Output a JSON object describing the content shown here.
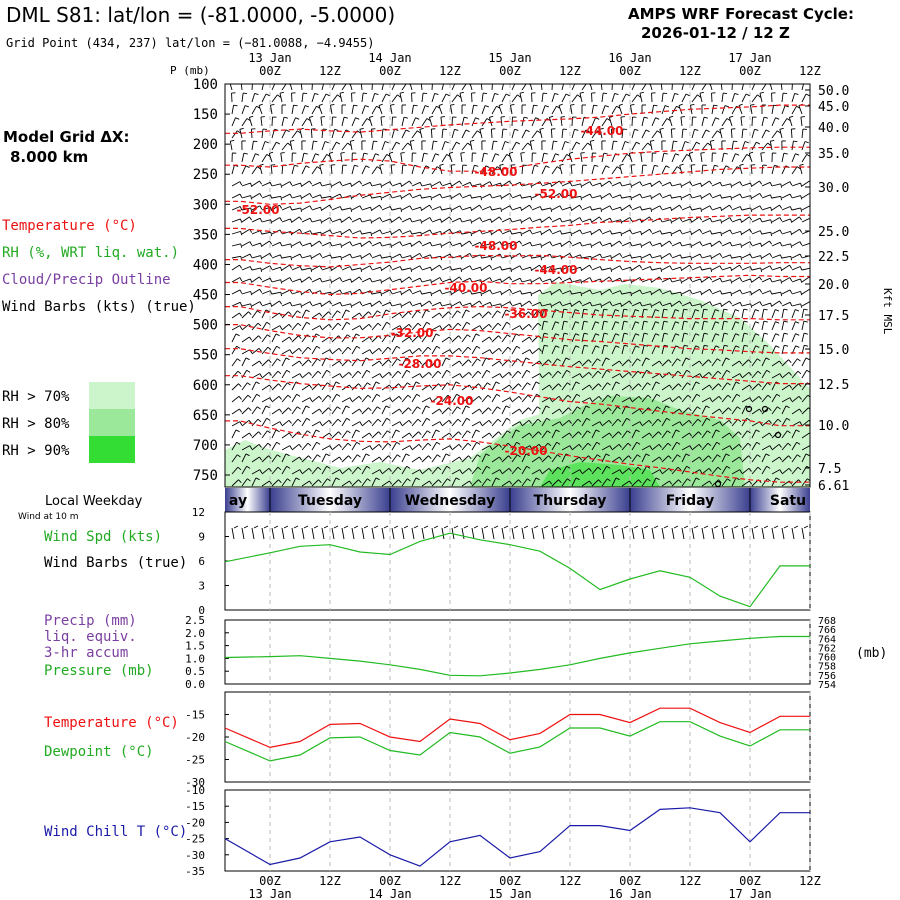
{
  "header": {
    "title": "DML S81:  lat/lon = (-81.0000, -5.0000)",
    "grid_point": "Grid Point (434, 237) lat/lon = (−81.0088, −4.9455)",
    "cycle_line1": "AMPS WRF Forecast Cycle:",
    "cycle_line2": "2026-01-12 / 12  Z",
    "model_grid_line1": "Model Grid ΔX:",
    "model_grid_line2": "8.000 km"
  },
  "time_axis": {
    "ticks": [
      "00Z",
      "12Z",
      "00Z",
      "12Z",
      "00Z",
      "12Z",
      "00Z",
      "12Z",
      "00Z",
      "12Z"
    ],
    "date_labels": [
      "13 Jan",
      "14 Jan",
      "15 Jan",
      "16 Jan",
      "17 Jan"
    ]
  },
  "weekday_bar": {
    "title": "Local Weekday",
    "wind_note": "Wind at 10 m",
    "days": [
      "Monday",
      "Tuesday",
      "Wednesday",
      "Thursday",
      "Friday",
      "Saturday"
    ],
    "visible_days": [
      "ay",
      "Tuesday",
      "Wednesday",
      "Thursday",
      "Friday",
      "Satu"
    ]
  },
  "legend": {
    "temperature": "Temperature (°C)",
    "rh": "RH (%, WRT liq. wat.)",
    "cloud": "Cloud/Precip Outline",
    "wind": "Wind Barbs (kts) (true)",
    "rh_levels": [
      "RH > 70%",
      "RH > 80%",
      "RH > 90%"
    ],
    "rh_colors": [
      "#ccf5cc",
      "#9be89b",
      "#33dd33"
    ]
  },
  "colors": {
    "temperature": "#ee1111",
    "green": "#22bb22",
    "blue": "#1a1aa8",
    "purple": "#7a3fa0"
  },
  "chart_data": [
    {
      "type": "line",
      "title": "Time-height cross section",
      "x": [
        0,
        6,
        12,
        18,
        24,
        30,
        36,
        42,
        48,
        54,
        60,
        66,
        72,
        78,
        84,
        90,
        96,
        102,
        108
      ],
      "x_unit": "forecast hour",
      "ylabel": "P (mb)",
      "y2label": "Kft MSL",
      "y_ticks": [
        100,
        150,
        200,
        250,
        300,
        350,
        400,
        450,
        500,
        550,
        600,
        650,
        700,
        750
      ],
      "y2_ticks": [
        "50.0",
        "45.0",
        "40.0",
        "35.0",
        "30.0",
        "25.0",
        "22.5",
        "20.0",
        "17.5",
        "15.0",
        "12.5",
        "10.0",
        "7.5",
        "6.61"
      ],
      "ylim": [
        100,
        775
      ],
      "isotherm_labels": [
        "-44.00",
        "-48.00",
        "-52.00",
        "-52.00",
        "-48.00",
        "-44.00",
        "-40.00",
        "-36.00",
        "-32.00",
        "-28.00",
        "-24.00",
        "-20.00"
      ],
      "series": [
        {
          "name": "-44",
          "values": [
            182,
            178,
            175,
            178,
            180,
            176,
            172,
            168,
            165,
            162,
            160,
            158,
            155,
            150,
            146,
            142,
            140,
            138,
            135
          ]
        },
        {
          "name": "-48",
          "values": [
            235,
            238,
            232,
            228,
            225,
            228,
            238,
            245,
            245,
            240,
            232,
            225,
            220,
            215,
            212,
            210,
            208,
            206,
            205
          ]
        },
        {
          "name": "-52",
          "values": [
            295,
            300,
            298,
            292,
            285,
            280,
            275,
            272,
            270,
            268,
            265,
            262,
            258,
            254,
            250,
            246,
            242,
            240,
            238
          ]
        },
        {
          "name": "-48b",
          "values": [
            340,
            345,
            348,
            352,
            356,
            355,
            352,
            348,
            345,
            342,
            338,
            335,
            330,
            328,
            325,
            322,
            320,
            318,
            318
          ]
        },
        {
          "name": "-44b",
          "values": [
            392,
            398,
            402,
            404,
            400,
            396,
            390,
            388,
            385,
            386,
            385,
            388,
            392,
            395,
            397,
            398,
            398,
            398,
            397
          ]
        },
        {
          "name": "-40",
          "values": [
            430,
            438,
            445,
            450,
            448,
            442,
            436,
            430,
            428,
            432,
            432,
            430,
            428,
            426,
            424,
            422,
            420,
            418,
            420
          ]
        },
        {
          "name": "-36",
          "values": [
            470,
            480,
            488,
            492,
            490,
            482,
            476,
            472,
            470,
            472,
            476,
            480,
            484,
            486,
            488,
            490,
            490,
            490,
            492
          ]
        },
        {
          "name": "-32",
          "values": [
            500,
            510,
            518,
            522,
            522,
            518,
            512,
            508,
            510,
            515,
            520,
            525,
            528,
            532,
            536,
            540,
            542,
            545,
            547
          ]
        },
        {
          "name": "-28",
          "values": [
            540,
            548,
            555,
            558,
            560,
            556,
            552,
            552,
            555,
            560,
            565,
            570,
            574,
            578,
            582,
            586,
            590,
            594,
            598
          ]
        },
        {
          "name": "-24",
          "values": [
            585,
            592,
            598,
            602,
            606,
            605,
            602,
            600,
            605,
            612,
            620,
            628,
            632,
            638,
            644,
            650,
            655,
            660,
            668
          ]
        },
        {
          "name": "-20",
          "values": [
            660,
            672,
            682,
            690,
            694,
            695,
            692,
            690,
            695,
            702,
            710,
            718,
            725,
            732,
            738,
            745,
            752,
            758,
            762
          ]
        }
      ]
    },
    {
      "type": "line",
      "title": "Wind Spd (kts)",
      "labels": [
        "Wind Spd (kts)",
        "Wind Barbs (true)"
      ],
      "y_ticks": [
        0,
        3,
        6,
        9,
        12
      ],
      "ylim": [
        0,
        12
      ],
      "x": [
        0,
        6,
        12,
        18,
        24,
        30,
        36,
        42,
        48,
        54,
        60,
        66,
        72,
        78,
        84,
        90,
        96,
        102,
        108
      ],
      "series": [
        {
          "name": "Wind Spd",
          "color": "green",
          "values": [
            5.9,
            7.0,
            7.8,
            8.0,
            7.1,
            6.8,
            8.4,
            9.4,
            8.6,
            8.0,
            7.2,
            5.1,
            2.5,
            3.8,
            4.8,
            4.0,
            1.7,
            0.4,
            5.4
          ]
        }
      ]
    },
    {
      "type": "line",
      "title": "Precip / Pressure",
      "labels": [
        "Precip (mm)",
        "liq. equiv.",
        "3-hr accum",
        "Pressure (mb)"
      ],
      "y_ticks": [
        0.0,
        0.5,
        1.0,
        1.5,
        2.0,
        2.5
      ],
      "ylim": [
        0.0,
        2.5
      ],
      "y2_ticks": [
        754,
        756,
        758,
        760,
        762,
        764,
        766,
        768
      ],
      "y2_label": "(mb)",
      "x": [
        0,
        6,
        12,
        18,
        24,
        30,
        36,
        42,
        48,
        54,
        60,
        66,
        72,
        78,
        84,
        90,
        96,
        102,
        108
      ],
      "series": [
        {
          "name": "Pressure",
          "color": "green",
          "values": [
            759.8,
            760.0,
            760.2,
            759.6,
            759.0,
            758.2,
            757.2,
            755.9,
            755.8,
            756.4,
            757.2,
            758.2,
            759.6,
            760.8,
            761.8,
            762.8,
            763.4,
            764.0,
            764.4
          ]
        }
      ]
    },
    {
      "type": "line",
      "title": "Temperature / Dewpoint",
      "labels": [
        "Temperature (°C)",
        "Dewpoint (°C)"
      ],
      "y_ticks": [
        -15,
        -20,
        -25,
        -30
      ],
      "ylim": [
        -30,
        -10
      ],
      "x": [
        0,
        6,
        12,
        18,
        24,
        30,
        36,
        42,
        48,
        54,
        60,
        66,
        72,
        78,
        84,
        90,
        96,
        102,
        108
      ],
      "series": [
        {
          "name": "Temperature",
          "color": "temperature",
          "values": [
            -18.0,
            -22.3,
            -21.0,
            -17.2,
            -17.0,
            -20.0,
            -21.0,
            -16.0,
            -17.0,
            -20.6,
            -19.2,
            -15.0,
            -15.0,
            -16.8,
            -13.6,
            -13.6,
            -16.8,
            -19.0,
            -15.4
          ]
        },
        {
          "name": "Dewpoint",
          "color": "green",
          "values": [
            -21.0,
            -25.3,
            -24.0,
            -20.2,
            -20.0,
            -23.0,
            -24.0,
            -19.0,
            -20.0,
            -23.6,
            -22.2,
            -18.0,
            -18.0,
            -19.8,
            -16.6,
            -16.6,
            -19.8,
            -22.0,
            -18.4
          ]
        }
      ]
    },
    {
      "type": "line",
      "title": "Wind Chill T (°C)",
      "labels": [
        "Wind Chill T (°C)"
      ],
      "y_ticks": [
        -10,
        -15,
        -20,
        -25,
        -30,
        -35
      ],
      "ylim": [
        -35,
        -10
      ],
      "x": [
        0,
        6,
        12,
        18,
        24,
        30,
        36,
        42,
        48,
        54,
        60,
        66,
        72,
        78,
        84,
        90,
        96,
        102,
        108
      ],
      "series": [
        {
          "name": "Wind Chill",
          "color": "blue",
          "values": [
            -25.0,
            -33.0,
            -31.0,
            -26.0,
            -24.5,
            -30.0,
            -33.5,
            -26.0,
            -24.0,
            -31.0,
            -29.0,
            -21.0,
            -21.0,
            -22.5,
            -16.0,
            -15.5,
            -17.0,
            -26.0,
            -17.0
          ]
        }
      ]
    }
  ]
}
